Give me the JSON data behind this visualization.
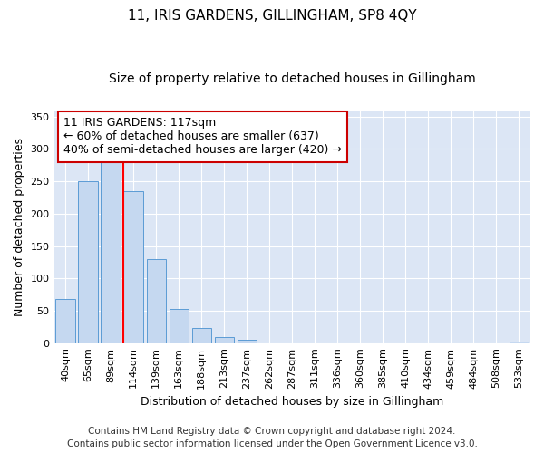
{
  "title": "11, IRIS GARDENS, GILLINGHAM, SP8 4QY",
  "subtitle": "Size of property relative to detached houses in Gillingham",
  "xlabel": "Distribution of detached houses by size in Gillingham",
  "ylabel": "Number of detached properties",
  "categories": [
    "40sqm",
    "65sqm",
    "89sqm",
    "114sqm",
    "139sqm",
    "163sqm",
    "188sqm",
    "213sqm",
    "237sqm",
    "262sqm",
    "287sqm",
    "311sqm",
    "336sqm",
    "360sqm",
    "385sqm",
    "410sqm",
    "434sqm",
    "459sqm",
    "484sqm",
    "508sqm",
    "533sqm"
  ],
  "values": [
    68,
    250,
    290,
    235,
    130,
    53,
    23,
    10,
    5,
    0,
    0,
    0,
    0,
    0,
    0,
    0,
    0,
    0,
    0,
    0,
    3
  ],
  "bar_color": "#c5d8f0",
  "bar_edge_color": "#5b9bd5",
  "red_line_index": 3,
  "annotation_line1": "11 IRIS GARDENS: 117sqm",
  "annotation_line2": "← 60% of detached houses are smaller (637)",
  "annotation_line3": "40% of semi-detached houses are larger (420) →",
  "annotation_box_color": "#ffffff",
  "annotation_box_edge_color": "#cc0000",
  "ylim": [
    0,
    360
  ],
  "yticks": [
    0,
    50,
    100,
    150,
    200,
    250,
    300,
    350
  ],
  "fig_background": "#ffffff",
  "plot_background": "#dce6f5",
  "grid_color": "#ffffff",
  "footer_line1": "Contains HM Land Registry data © Crown copyright and database right 2024.",
  "footer_line2": "Contains public sector information licensed under the Open Government Licence v3.0.",
  "title_fontsize": 11,
  "subtitle_fontsize": 10,
  "xlabel_fontsize": 9,
  "ylabel_fontsize": 9,
  "tick_fontsize": 8,
  "annotation_fontsize": 9,
  "footer_fontsize": 7.5
}
